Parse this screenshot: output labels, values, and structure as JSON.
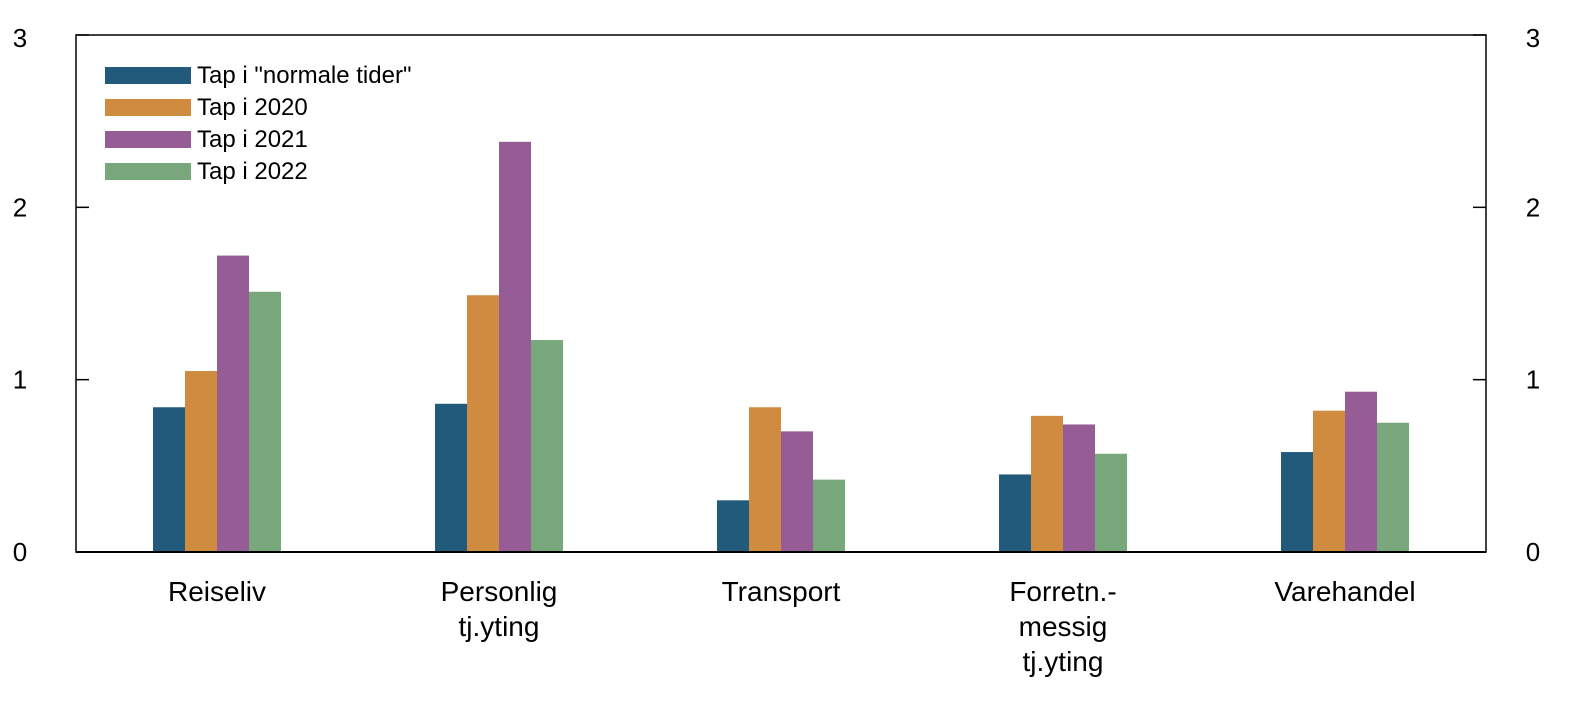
{
  "chart_data": {
    "type": "bar",
    "title": "",
    "xlabel": "",
    "ylabel": "",
    "ylim": [
      0,
      3
    ],
    "yticks": [
      0,
      1,
      2,
      3
    ],
    "secondary_axis": true,
    "grid": false,
    "legend_position": "top-left",
    "categories": [
      [
        "Reiseliv"
      ],
      [
        "Personlig",
        "tj.yting"
      ],
      [
        "Transport"
      ],
      [
        "Forretn.-",
        "messig",
        "tj.yting"
      ],
      [
        "Varehandel"
      ]
    ],
    "series": [
      {
        "name": "Tap i \"normale tider\"",
        "color": "#215a7a",
        "values": [
          0.84,
          0.86,
          0.3,
          0.45,
          0.58
        ]
      },
      {
        "name": "Tap i 2020",
        "color": "#cf8b3f",
        "values": [
          1.05,
          1.49,
          0.84,
          0.79,
          0.82
        ]
      },
      {
        "name": "Tap i 2021",
        "color": "#955c95",
        "values": [
          1.72,
          2.38,
          0.7,
          0.74,
          0.93
        ]
      },
      {
        "name": "Tap i 2022",
        "color": "#79a77c",
        "values": [
          1.51,
          1.23,
          0.42,
          0.57,
          0.75
        ]
      }
    ]
  }
}
